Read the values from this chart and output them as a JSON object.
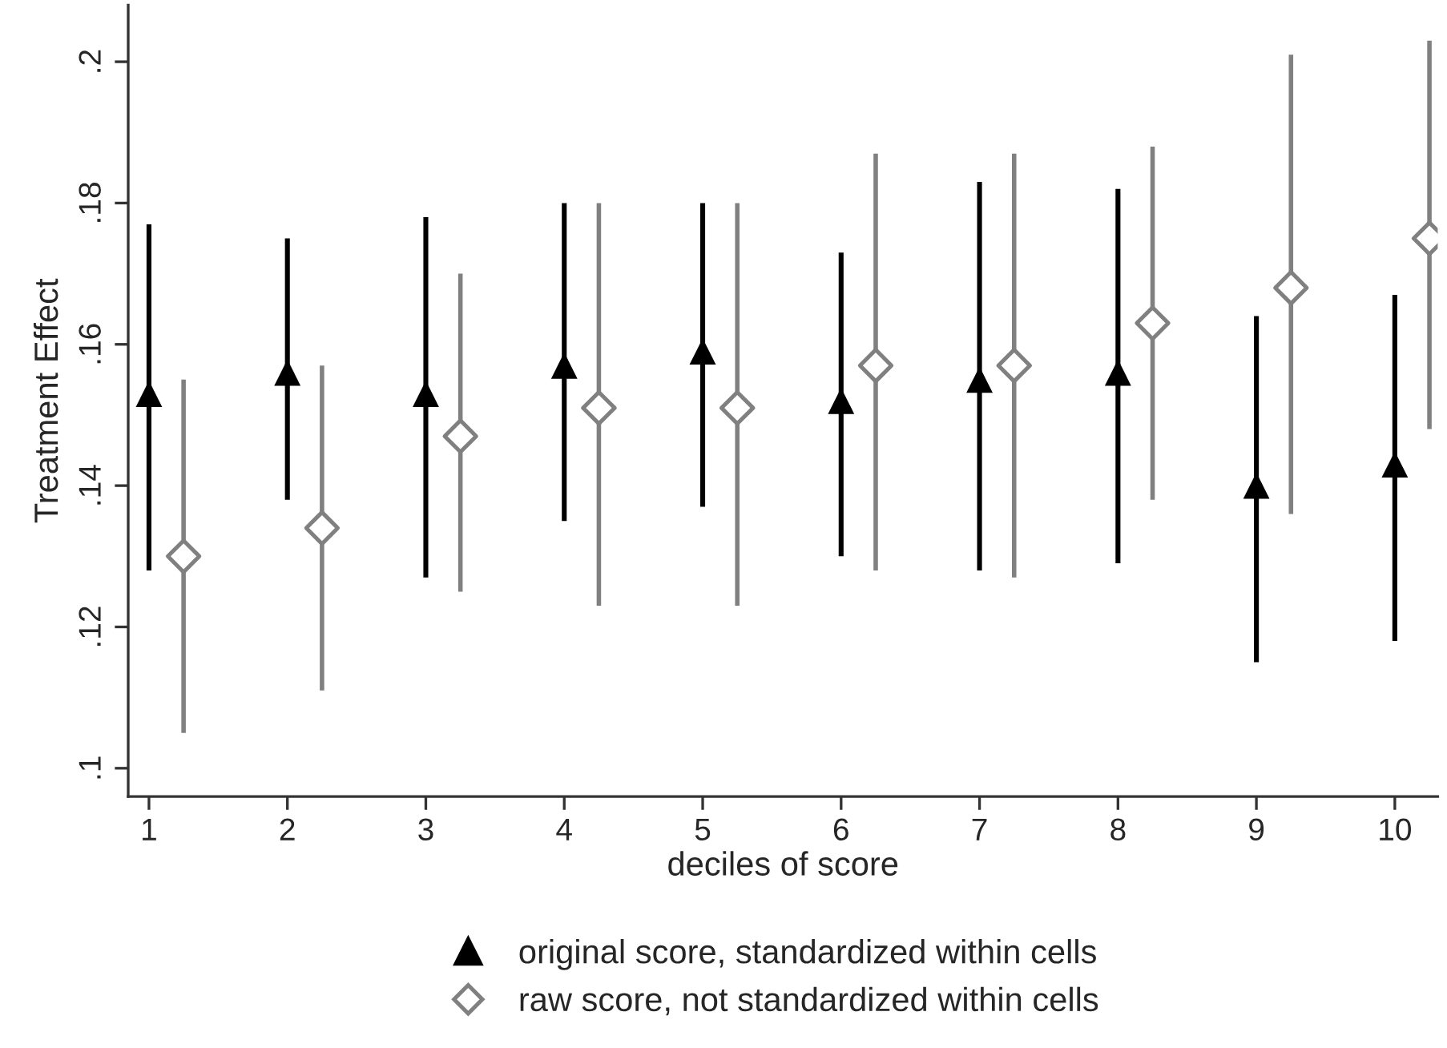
{
  "chart_data": {
    "type": "scatter",
    "xlabel": "deciles of score",
    "ylabel": "Treatment Effect",
    "xlim": [
      0.85,
      10.31
    ],
    "xticks": [
      1,
      2,
      3,
      4,
      5,
      6,
      7,
      8,
      9,
      10
    ],
    "ylim": [
      0.096,
      0.208
    ],
    "yticks": [
      {
        "value": 0.1,
        "label": ".1"
      },
      {
        "value": 0.12,
        "label": ".12"
      },
      {
        "value": 0.14,
        "label": ".14"
      },
      {
        "value": 0.16,
        "label": ".16"
      },
      {
        "value": 0.18,
        "label": ".18"
      },
      {
        "value": 0.2,
        "label": ".2"
      }
    ],
    "grid": false,
    "legend": "bottom",
    "series": [
      {
        "name": "original score, standardized within cells",
        "color": "#000000",
        "marker": "triangle",
        "x": [
          1,
          2,
          3,
          4,
          5,
          6,
          7,
          8,
          9,
          10
        ],
        "values": [
          0.153,
          0.156,
          0.153,
          0.157,
          0.159,
          0.152,
          0.155,
          0.156,
          0.14,
          0.143
        ],
        "errors": [
          [
            0.128,
            0.177
          ],
          [
            0.138,
            0.175
          ],
          [
            0.127,
            0.178
          ],
          [
            0.135,
            0.18
          ],
          [
            0.137,
            0.18
          ],
          [
            0.13,
            0.173
          ],
          [
            0.128,
            0.183
          ],
          [
            0.129,
            0.182
          ],
          [
            0.115,
            0.164
          ],
          [
            0.118,
            0.167
          ]
        ]
      },
      {
        "name": "raw score, not standardized within cells",
        "color": "#808080",
        "marker": "diamond",
        "x": [
          1.25,
          2.25,
          3.25,
          4.25,
          5.25,
          6.25,
          7.25,
          8.25,
          9.25,
          10.25
        ],
        "values": [
          0.13,
          0.134,
          0.147,
          0.151,
          0.151,
          0.157,
          0.157,
          0.163,
          0.168,
          0.175
        ],
        "errors": [
          [
            0.105,
            0.155
          ],
          [
            0.111,
            0.157
          ],
          [
            0.125,
            0.17
          ],
          [
            0.123,
            0.18
          ],
          [
            0.123,
            0.18
          ],
          [
            0.128,
            0.187
          ],
          [
            0.127,
            0.187
          ],
          [
            0.138,
            0.188
          ],
          [
            0.136,
            0.201
          ],
          [
            0.148,
            0.203
          ]
        ]
      }
    ]
  }
}
